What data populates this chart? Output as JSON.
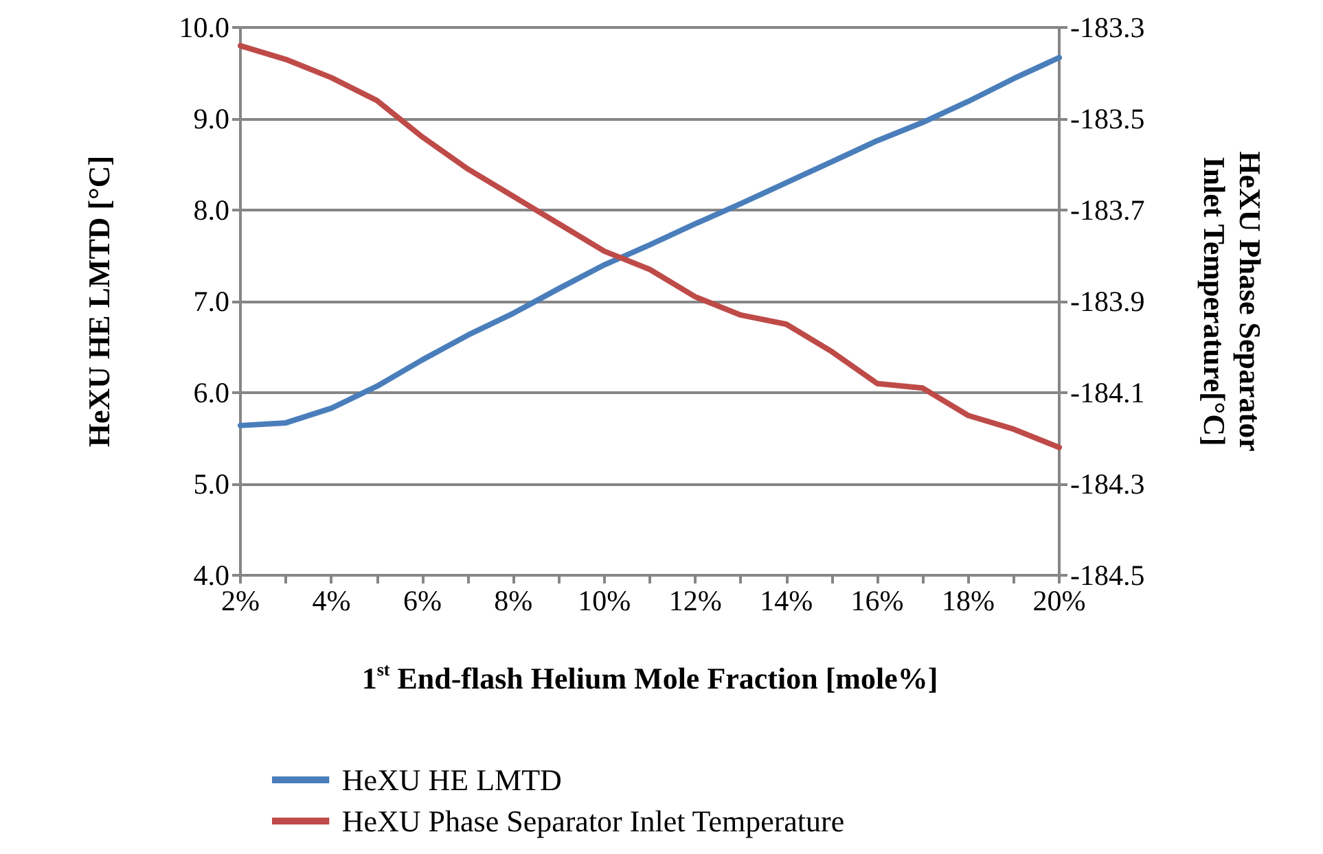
{
  "chart_data": {
    "type": "line",
    "xlabel": "1$^{st}$ End-flash Helium Mole Fraction [mole%]",
    "ylabel": "HeXU HE LMTD [°C]",
    "y2label": "HeXU Phase Separator\nInlet Temperature[°C]",
    "x": [
      2,
      3,
      4,
      5,
      6,
      7,
      8,
      9,
      10,
      11,
      12,
      13,
      14,
      15,
      16,
      17,
      18,
      19,
      20
    ],
    "series": [
      {
        "name": "HeXU HE LMTD",
        "color": "#4a7ebb",
        "values": [
          5.64,
          5.67,
          5.83,
          6.07,
          6.36,
          6.63,
          6.87,
          7.14,
          7.4,
          7.62,
          7.85,
          8.07,
          8.3,
          8.53,
          8.76,
          8.96,
          9.19,
          9.44,
          9.67
        ]
      },
      {
        "name": "HeXU Phase Separator Inlet Temperature",
        "color": "#be4b48",
        "axis": "y2",
        "values": [
          -183.34,
          -183.37,
          -183.41,
          -183.46,
          -183.54,
          -183.61,
          -183.67,
          -183.73,
          -183.79,
          -183.83,
          -183.89,
          -183.93,
          -183.95,
          -184.01,
          -184.08,
          -184.09,
          -184.15,
          -184.18,
          -184.22
        ]
      }
    ],
    "xlim": [
      2,
      20
    ],
    "xticks": [
      {
        "value": 2,
        "label": "2%"
      },
      {
        "value": 3,
        "label": null
      },
      {
        "value": 4,
        "label": "4%"
      },
      {
        "value": 5,
        "label": null
      },
      {
        "value": 6,
        "label": "6%"
      },
      {
        "value": 7,
        "label": null
      },
      {
        "value": 8,
        "label": "8%"
      },
      {
        "value": 9,
        "label": null
      },
      {
        "value": 10,
        "label": "10%"
      },
      {
        "value": 11,
        "label": null
      },
      {
        "value": 12,
        "label": "12%"
      },
      {
        "value": 13,
        "label": null
      },
      {
        "value": 14,
        "label": "14%"
      },
      {
        "value": 15,
        "label": null
      },
      {
        "value": 16,
        "label": "16%"
      },
      {
        "value": 17,
        "label": null
      },
      {
        "value": 18,
        "label": "18%"
      },
      {
        "value": 19,
        "label": null
      },
      {
        "value": 20,
        "label": "20%"
      }
    ],
    "ylim": [
      4,
      10
    ],
    "yticks": [
      {
        "value": 4,
        "label": "4.0"
      },
      {
        "value": 5,
        "label": "5.0"
      },
      {
        "value": 6,
        "label": "6.0"
      },
      {
        "value": 7,
        "label": "7.0"
      },
      {
        "value": 8,
        "label": "8.0"
      },
      {
        "value": 9,
        "label": "9.0"
      },
      {
        "value": 10,
        "label": "10.0"
      }
    ],
    "y2lim": [
      -184.5,
      -183.3
    ],
    "y2ticks": [
      -184.5,
      -184.3,
      -184.1,
      -183.9,
      -183.7,
      -183.5,
      -183.3
    ],
    "grid": "y",
    "legend": "bottom",
    "marker": "none",
    "line_style": "solid"
  }
}
